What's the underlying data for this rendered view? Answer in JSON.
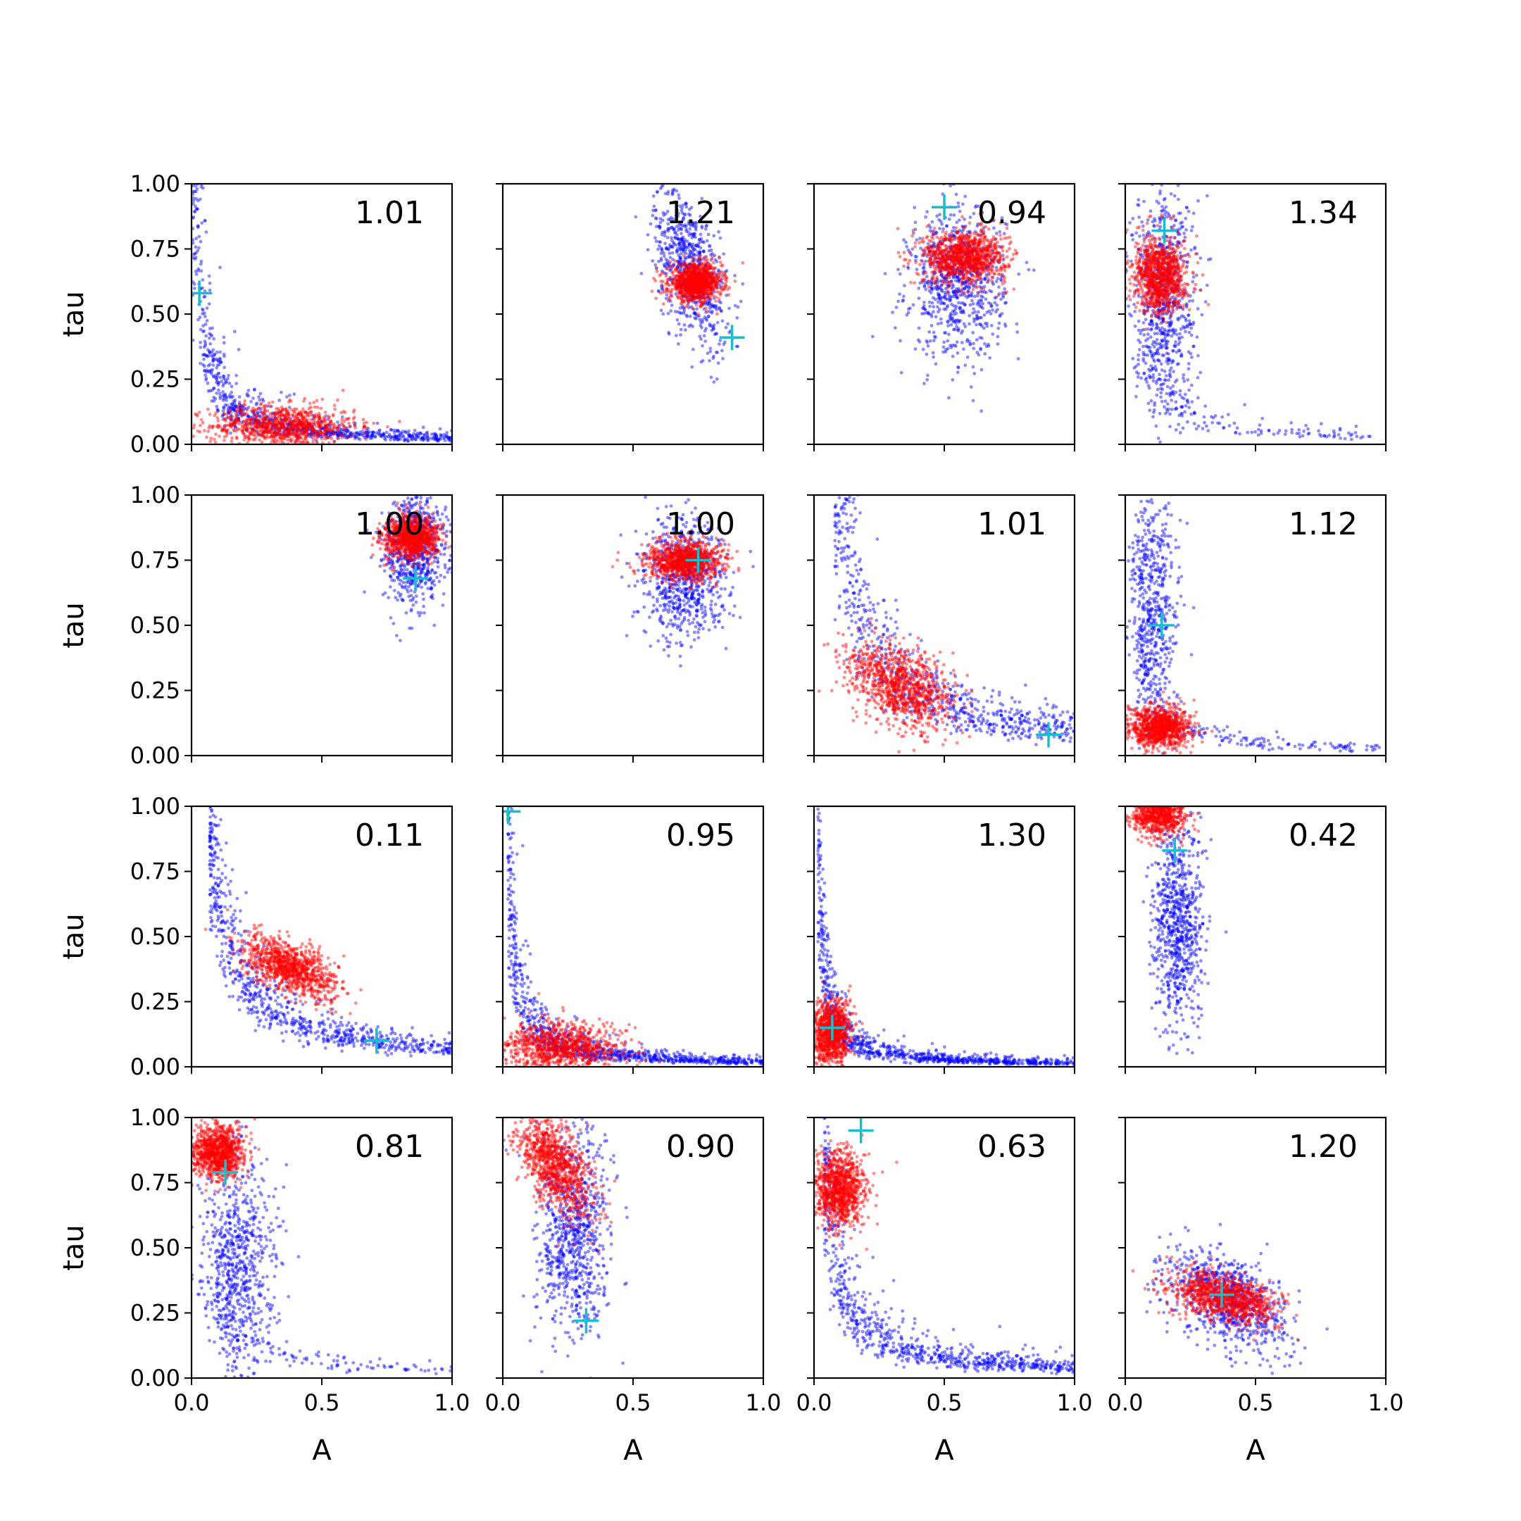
{
  "chart_data": {
    "type": "scatter",
    "layout": {
      "rows": 4,
      "cols": 4
    },
    "xlabel": "A",
    "ylabel": "tau",
    "xlim": [
      0,
      1
    ],
    "ylim": [
      0,
      1
    ],
    "xticks": [
      "0.0",
      "0.5",
      "1.0"
    ],
    "yticks": [
      "0.00",
      "0.25",
      "0.50",
      "0.75",
      "1.00"
    ],
    "grid": false,
    "series_colors": {
      "blue": "#0000ff",
      "red": "#ff0000",
      "marker": "#17becf"
    },
    "panels": [
      {
        "value": "1.01",
        "marker": [
          0.03,
          0.58
        ],
        "blue": [
          {
            "fn": "hyper",
            "k": 0.025,
            "n": 900,
            "s": 0.35,
            "xmin": 0.005,
            "xmax": 1.0
          }
        ],
        "red": [
          {
            "fn": "gauss",
            "cx": 0.35,
            "cy": 0.07,
            "sx": 0.14,
            "sy": 0.04,
            "n": 900,
            "rho": 0
          }
        ]
      },
      {
        "value": "1.21",
        "marker": [
          0.88,
          0.41
        ],
        "blue": [
          {
            "fn": "gauss",
            "cx": 0.72,
            "cy": 0.68,
            "sx": 0.07,
            "sy": 0.15,
            "n": 700,
            "rho": -0.5
          }
        ],
        "red": [
          {
            "fn": "gauss",
            "cx": 0.74,
            "cy": 0.62,
            "sx": 0.05,
            "sy": 0.035,
            "n": 1000,
            "rho": 0
          }
        ]
      },
      {
        "value": "0.94",
        "marker": [
          0.5,
          0.91
        ],
        "blue": [
          {
            "fn": "gauss",
            "cx": 0.55,
            "cy": 0.62,
            "sx": 0.09,
            "sy": 0.14,
            "n": 800,
            "rho": 0
          }
        ],
        "red": [
          {
            "fn": "gauss",
            "cx": 0.58,
            "cy": 0.72,
            "sx": 0.08,
            "sy": 0.05,
            "n": 1000,
            "rho": 0
          }
        ]
      },
      {
        "value": "1.34",
        "marker": [
          0.15,
          0.82
        ],
        "blue": [
          {
            "fn": "gauss",
            "cx": 0.15,
            "cy": 0.55,
            "sx": 0.06,
            "sy": 0.22,
            "n": 700,
            "rho": 0
          },
          {
            "fn": "hyper",
            "k": 0.03,
            "n": 150,
            "s": 0.3,
            "xmin": 0.05,
            "xmax": 0.95
          }
        ],
        "red": [
          {
            "fn": "gauss",
            "cx": 0.13,
            "cy": 0.65,
            "sx": 0.05,
            "sy": 0.07,
            "n": 1000,
            "rho": 0
          }
        ]
      },
      {
        "value": "1.00",
        "marker": [
          0.86,
          0.68
        ],
        "blue": [
          {
            "fn": "gauss",
            "cx": 0.86,
            "cy": 0.8,
            "sx": 0.06,
            "sy": 0.11,
            "n": 700,
            "rho": 0
          }
        ],
        "red": [
          {
            "fn": "gauss",
            "cx": 0.84,
            "cy": 0.84,
            "sx": 0.05,
            "sy": 0.04,
            "n": 1000,
            "rho": 0
          }
        ]
      },
      {
        "value": "1.00",
        "marker": [
          0.75,
          0.75
        ],
        "blue": [
          {
            "fn": "gauss",
            "cx": 0.7,
            "cy": 0.68,
            "sx": 0.08,
            "sy": 0.12,
            "n": 700,
            "rho": 0
          }
        ],
        "red": [
          {
            "fn": "gauss",
            "cx": 0.7,
            "cy": 0.75,
            "sx": 0.07,
            "sy": 0.035,
            "n": 1000,
            "rho": 0
          }
        ]
      },
      {
        "value": "1.01",
        "marker": [
          0.9,
          0.08
        ],
        "blue": [
          {
            "fn": "hyper",
            "k": 0.1,
            "n": 800,
            "s": 0.3,
            "xmin": 0.08,
            "xmax": 1.0
          }
        ],
        "red": [
          {
            "fn": "gauss",
            "cx": 0.33,
            "cy": 0.27,
            "sx": 0.1,
            "sy": 0.08,
            "n": 1000,
            "rho": -0.4
          }
        ]
      },
      {
        "value": "1.12",
        "marker": [
          0.14,
          0.5
        ],
        "blue": [
          {
            "fn": "gauss",
            "cx": 0.1,
            "cy": 0.55,
            "sx": 0.05,
            "sy": 0.25,
            "n": 600,
            "rho": 0
          },
          {
            "fn": "hyper",
            "k": 0.025,
            "n": 200,
            "s": 0.3,
            "xmin": 0.05,
            "xmax": 1.0
          }
        ],
        "red": [
          {
            "fn": "gauss",
            "cx": 0.13,
            "cy": 0.11,
            "sx": 0.06,
            "sy": 0.04,
            "n": 1000,
            "rho": 0
          }
        ]
      },
      {
        "value": "0.11",
        "marker": [
          0.71,
          0.1
        ],
        "blue": [
          {
            "fn": "hyper",
            "k": 0.07,
            "n": 800,
            "s": 0.25,
            "xmin": 0.07,
            "xmax": 1.0
          }
        ],
        "red": [
          {
            "fn": "gauss",
            "cx": 0.38,
            "cy": 0.38,
            "sx": 0.09,
            "sy": 0.06,
            "n": 1000,
            "rho": -0.6
          }
        ]
      },
      {
        "value": "0.95",
        "marker": [
          0.02,
          0.98
        ],
        "blue": [
          {
            "fn": "hyper",
            "k": 0.02,
            "n": 900,
            "s": 0.35,
            "xmin": 0.02,
            "xmax": 1.0
          }
        ],
        "red": [
          {
            "fn": "gauss",
            "cx": 0.22,
            "cy": 0.07,
            "sx": 0.12,
            "sy": 0.05,
            "n": 1000,
            "rho": 0
          }
        ]
      },
      {
        "value": "1.30",
        "marker": [
          0.07,
          0.15
        ],
        "blue": [
          {
            "fn": "hyper",
            "k": 0.015,
            "n": 900,
            "s": 0.35,
            "xmin": 0.015,
            "xmax": 1.0
          }
        ],
        "red": [
          {
            "fn": "gauss",
            "cx": 0.06,
            "cy": 0.13,
            "sx": 0.04,
            "sy": 0.06,
            "n": 1000,
            "rho": 0
          }
        ]
      },
      {
        "value": "0.42",
        "marker": [
          0.19,
          0.83
        ],
        "blue": [
          {
            "fn": "gauss",
            "cx": 0.2,
            "cy": 0.55,
            "sx": 0.05,
            "sy": 0.2,
            "n": 800,
            "rho": 0
          }
        ],
        "red": [
          {
            "fn": "gauss",
            "cx": 0.13,
            "cy": 0.97,
            "sx": 0.05,
            "sy": 0.04,
            "n": 800,
            "rho": 0
          }
        ]
      },
      {
        "value": "0.81",
        "marker": [
          0.13,
          0.79
        ],
        "blue": [
          {
            "fn": "gauss",
            "cx": 0.18,
            "cy": 0.45,
            "sx": 0.07,
            "sy": 0.22,
            "n": 700,
            "rho": 0
          },
          {
            "fn": "hyper",
            "k": 0.03,
            "n": 150,
            "s": 0.3,
            "xmin": 0.1,
            "xmax": 1.0
          }
        ],
        "red": [
          {
            "fn": "gauss",
            "cx": 0.1,
            "cy": 0.87,
            "sx": 0.05,
            "sy": 0.05,
            "n": 1000,
            "rho": 0
          }
        ]
      },
      {
        "value": "0.90",
        "marker": [
          0.32,
          0.22
        ],
        "blue": [
          {
            "fn": "gauss",
            "cx": 0.27,
            "cy": 0.55,
            "sx": 0.07,
            "sy": 0.2,
            "n": 800,
            "rho": 0
          }
        ],
        "red": [
          {
            "fn": "gauss",
            "cx": 0.2,
            "cy": 0.82,
            "sx": 0.07,
            "sy": 0.1,
            "n": 1000,
            "rho": -0.5
          }
        ]
      },
      {
        "value": "0.63",
        "marker": [
          0.18,
          0.95
        ],
        "blue": [
          {
            "fn": "hyper",
            "k": 0.04,
            "n": 800,
            "s": 0.35,
            "xmin": 0.04,
            "xmax": 1.0
          }
        ],
        "red": [
          {
            "fn": "gauss",
            "cx": 0.1,
            "cy": 0.72,
            "sx": 0.05,
            "sy": 0.07,
            "n": 1000,
            "rho": 0
          }
        ]
      },
      {
        "value": "1.20",
        "marker": [
          0.37,
          0.32
        ],
        "blue": [
          {
            "fn": "gauss",
            "cx": 0.4,
            "cy": 0.3,
            "sx": 0.12,
            "sy": 0.1,
            "n": 800,
            "rho": -0.5
          }
        ],
        "red": [
          {
            "fn": "gauss",
            "cx": 0.38,
            "cy": 0.31,
            "sx": 0.1,
            "sy": 0.05,
            "n": 1000,
            "rho": -0.4
          }
        ]
      }
    ]
  }
}
